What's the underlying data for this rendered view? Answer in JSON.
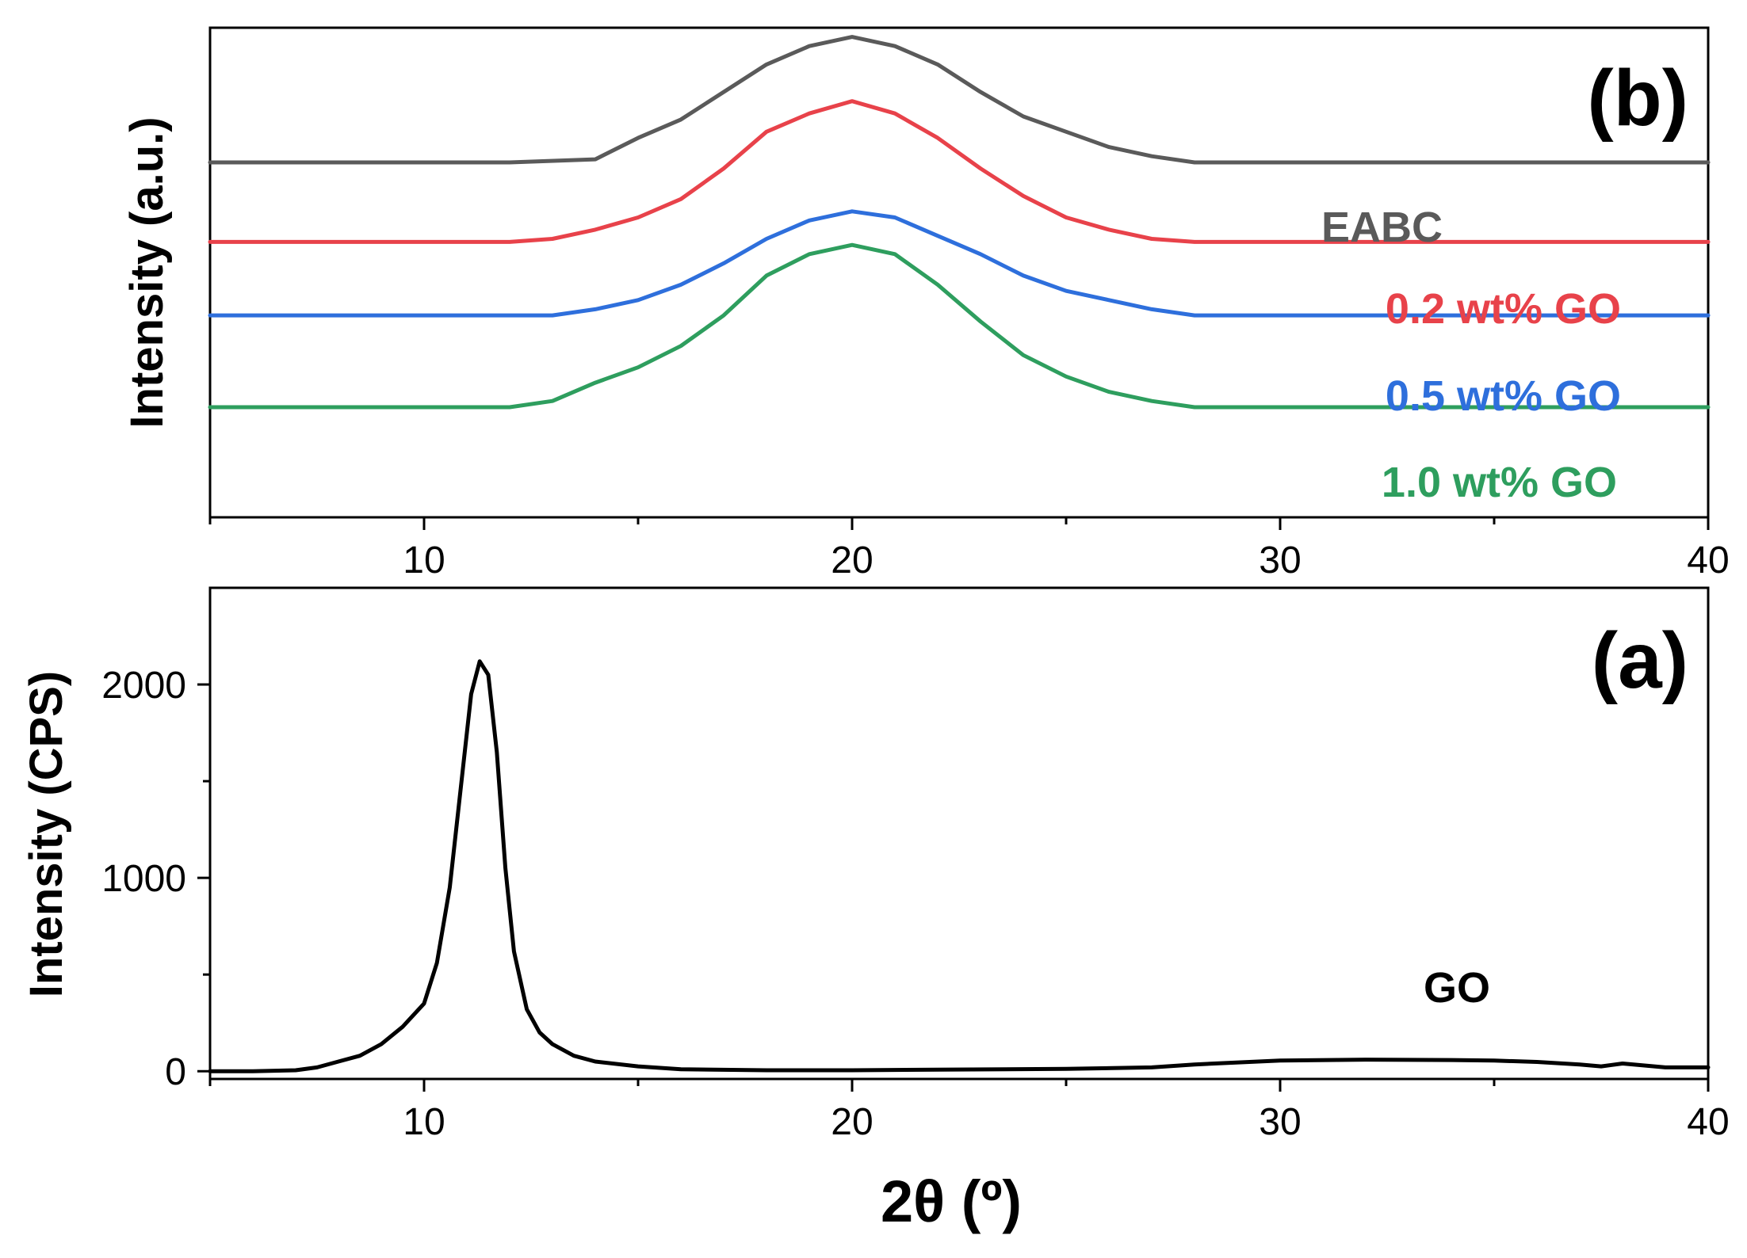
{
  "chart_data": [
    {
      "panel": "(b)",
      "type": "line",
      "title": "",
      "xlabel": "",
      "ylabel": "Intensity (a.u.)",
      "xlim": [
        5,
        40
      ],
      "xticks": [
        10,
        20,
        30,
        40
      ],
      "yticks_shown": false,
      "ylim": [
        0,
        1.6
      ],
      "series": [
        {
          "name": "EABC",
          "color": "#5a5a5a",
          "offset": 1.16,
          "x": [
            5,
            8,
            10,
            12,
            14,
            15,
            16,
            17,
            18,
            19,
            20,
            21,
            22,
            23,
            24,
            25,
            26,
            27,
            28,
            30,
            35,
            40
          ],
          "y": [
            0.0,
            0.0,
            0.0,
            0.0,
            0.01,
            0.08,
            0.14,
            0.23,
            0.32,
            0.38,
            0.41,
            0.38,
            0.32,
            0.23,
            0.15,
            0.1,
            0.05,
            0.02,
            0.0,
            0.0,
            0.0,
            0.0
          ]
        },
        {
          "name": "0.2 wt% GO",
          "color": "#e8424a",
          "offset": 0.9,
          "x": [
            5,
            8,
            10,
            12,
            13,
            14,
            15,
            16,
            17,
            18,
            19,
            20,
            21,
            22,
            23,
            24,
            25,
            26,
            27,
            28,
            30,
            35,
            40
          ],
          "y": [
            0.0,
            0.0,
            0.0,
            0.0,
            0.01,
            0.04,
            0.08,
            0.14,
            0.24,
            0.36,
            0.42,
            0.46,
            0.42,
            0.34,
            0.24,
            0.15,
            0.08,
            0.04,
            0.01,
            0.0,
            0.0,
            0.0,
            0.0
          ]
        },
        {
          "name": "0.5 wt% GO",
          "color": "#2e6fdc",
          "offset": 0.66,
          "x": [
            5,
            8,
            10,
            12,
            13,
            14,
            15,
            16,
            17,
            18,
            19,
            20,
            21,
            22,
            23,
            24,
            25,
            26,
            27,
            28,
            30,
            35,
            40
          ],
          "y": [
            0.0,
            0.0,
            0.0,
            0.0,
            0.0,
            0.02,
            0.05,
            0.1,
            0.17,
            0.25,
            0.31,
            0.34,
            0.32,
            0.26,
            0.2,
            0.13,
            0.08,
            0.05,
            0.02,
            0.0,
            0.0,
            0.0,
            0.0
          ]
        },
        {
          "name": "1.0 wt% GO",
          "color": "#2e9e5e",
          "offset": 0.36,
          "x": [
            5,
            8,
            10,
            12,
            13,
            14,
            15,
            16,
            17,
            18,
            19,
            20,
            21,
            22,
            23,
            24,
            25,
            26,
            27,
            28,
            30,
            35,
            40
          ],
          "y": [
            0.0,
            0.0,
            0.0,
            0.0,
            0.02,
            0.08,
            0.13,
            0.2,
            0.3,
            0.43,
            0.5,
            0.53,
            0.5,
            0.4,
            0.28,
            0.17,
            0.1,
            0.05,
            0.02,
            0.0,
            0.0,
            0.0,
            0.0
          ]
        }
      ]
    },
    {
      "panel": "(a)",
      "type": "line",
      "title": "",
      "xlabel": "2θ (º)",
      "ylabel": "Intensity (CPS)",
      "xlim": [
        5,
        40
      ],
      "ylim": [
        -40,
        2500
      ],
      "xticks": [
        10,
        20,
        30,
        40
      ],
      "yticks": [
        0,
        1000,
        2000
      ],
      "series": [
        {
          "name": "GO",
          "color": "#000000",
          "x": [
            5,
            6,
            7,
            7.5,
            8,
            8.5,
            9,
            9.5,
            10,
            10.3,
            10.6,
            10.9,
            11.1,
            11.3,
            11.5,
            11.7,
            11.9,
            12.1,
            12.4,
            12.7,
            13,
            13.5,
            14,
            15,
            16,
            18,
            20,
            22,
            25,
            27,
            28,
            30,
            32,
            34,
            35,
            36,
            37,
            37.5,
            38,
            39,
            40
          ],
          "y": [
            0,
            0,
            5,
            20,
            50,
            80,
            140,
            230,
            350,
            560,
            950,
            1550,
            1950,
            2120,
            2050,
            1650,
            1050,
            620,
            320,
            200,
            140,
            80,
            50,
            25,
            10,
            5,
            5,
            8,
            12,
            20,
            35,
            55,
            60,
            58,
            55,
            48,
            35,
            25,
            40,
            20,
            20
          ]
        }
      ]
    }
  ],
  "labels": {
    "panel_b": "(b)",
    "panel_a": "(a)",
    "ylabel_b": "Intensity (a.u.)",
    "ylabel_a": "Intensity (CPS)",
    "xlabel": "2θ (º)"
  }
}
